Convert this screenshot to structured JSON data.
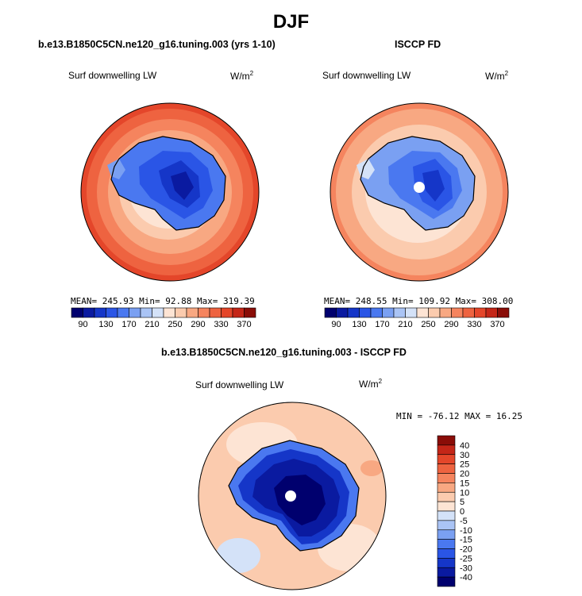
{
  "title": "DJF",
  "panels": [
    {
      "id": "model",
      "subtitle": "b.e13.B1850C5CN.ne120_g16.tuning.003 (yrs 1-10)",
      "variable": "Surf downwelling LW",
      "units": "W/m",
      "units_exp": "2",
      "stats": "MEAN= 245.93   Min=  92.88   Max= 319.39",
      "mean": 245.93,
      "min": 92.88,
      "max": 319.39
    },
    {
      "id": "obs",
      "subtitle": "ISCCP FD",
      "variable": "Surf downwelling LW",
      "units": "W/m",
      "units_exp": "2",
      "stats": "MEAN= 248.55   Min= 109.92   Max= 308.00",
      "mean": 248.55,
      "min": 109.92,
      "max": 308.0
    }
  ],
  "difference": {
    "subtitle": "b.e13.B1850C5CN.ne120_g16.tuning.003 - ISCCP FD",
    "variable": "Surf downwelling LW",
    "units": "W/m",
    "units_exp": "2",
    "stats": "MIN = -76.12 MAX =  16.25",
    "min": -76.12,
    "max": 16.25
  },
  "colors": {
    "abs": [
      "#00006e",
      "#0a1aa0",
      "#1536c8",
      "#2a55e6",
      "#4a78f0",
      "#7aa0f2",
      "#aac4f5",
      "#d4e2f8",
      "#fde4d4",
      "#fbcbae",
      "#f8a882",
      "#f5845e",
      "#ee6340",
      "#e4462a",
      "#c42618",
      "#8a0d08"
    ],
    "diff": [
      "#00006e",
      "#0a1aa0",
      "#1536c8",
      "#2a55e6",
      "#4a78f0",
      "#7aa0f2",
      "#aac4f5",
      "#d4e2f8",
      "#fde4d4",
      "#fbcbae",
      "#f8a882",
      "#f5845e",
      "#ee6340",
      "#e4462a",
      "#c42618",
      "#8a0d08"
    ]
  },
  "chart_data": [
    {
      "type": "heatmap",
      "projection": "south-polar stereographic",
      "title": "b.e13.B1850C5CN.ne120_g16.tuning.003 (yrs 1-10)",
      "variable": "Surf downwelling LW",
      "units": "W/m2",
      "colorbar_ticks": [
        "90",
        "130",
        "170",
        "210",
        "250",
        "290",
        "330",
        "370"
      ],
      "colorbar_levels": [
        90,
        110,
        130,
        150,
        170,
        190,
        210,
        230,
        250,
        270,
        290,
        310,
        330,
        350,
        370
      ],
      "mean": 245.93,
      "min": 92.88,
      "max": 319.39
    },
    {
      "type": "heatmap",
      "projection": "south-polar stereographic",
      "title": "ISCCP FD",
      "variable": "Surf downwelling LW",
      "units": "W/m2",
      "colorbar_ticks": [
        "90",
        "130",
        "170",
        "210",
        "250",
        "290",
        "330",
        "370"
      ],
      "colorbar_levels": [
        90,
        110,
        130,
        150,
        170,
        190,
        210,
        230,
        250,
        270,
        290,
        310,
        330,
        350,
        370
      ],
      "mean": 248.55,
      "min": 109.92,
      "max": 308.0
    },
    {
      "type": "heatmap",
      "projection": "south-polar stereographic",
      "title": "b.e13.B1850C5CN.ne120_g16.tuning.003 - ISCCP FD",
      "variable": "Surf downwelling LW",
      "units": "W/m2",
      "colorbar_ticks": [
        "40",
        "30",
        "25",
        "20",
        "15",
        "10",
        "5",
        "0",
        "-5",
        "-10",
        "-15",
        "-20",
        "-25",
        "-30",
        "-40"
      ],
      "min": -76.12,
      "max": 16.25
    }
  ]
}
